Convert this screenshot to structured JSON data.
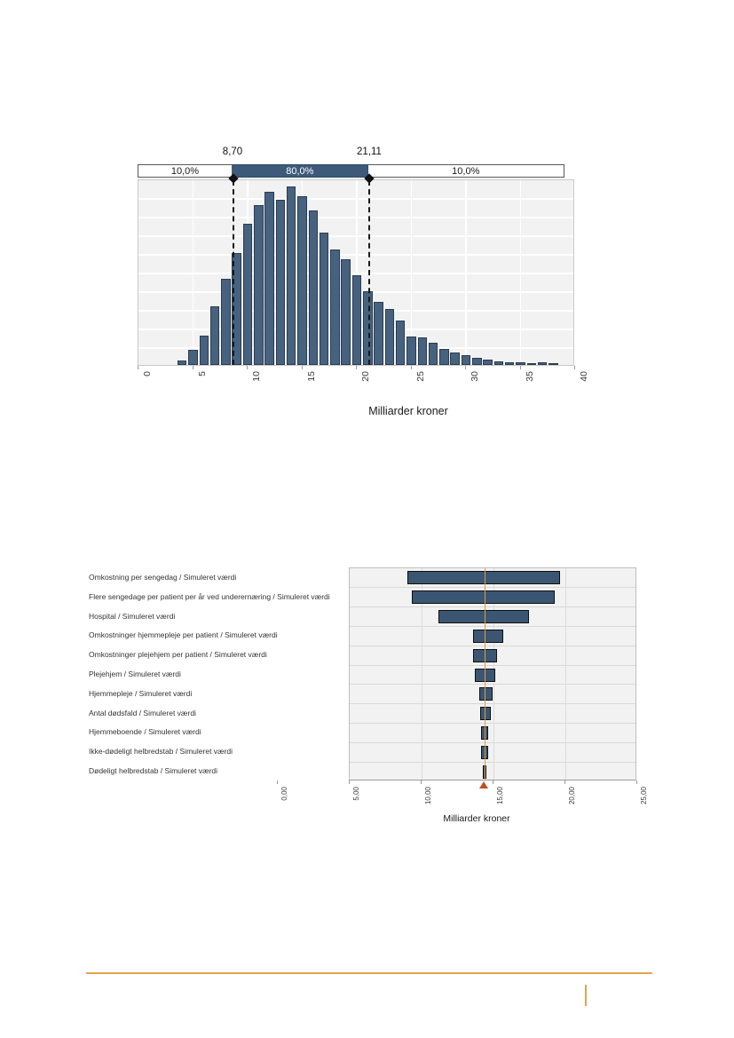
{
  "chart_data": [
    {
      "type": "bar",
      "role": "histogram-distribution",
      "title": "",
      "xlabel": "Milliarder kroner",
      "ylabel": "",
      "xlim": [
        0,
        40
      ],
      "grid": true,
      "legend": "none",
      "x_ticks": [
        "0",
        "5",
        "10",
        "15",
        "20",
        "25",
        "30",
        "35",
        "40"
      ],
      "x_tick_values": [
        0,
        5,
        10,
        15,
        20,
        25,
        30,
        35,
        40
      ],
      "bin_centers": [
        4,
        5,
        6,
        7,
        8,
        9,
        10,
        11,
        12,
        13,
        14,
        15,
        16,
        17,
        18,
        19,
        20,
        21,
        22,
        23,
        24,
        25,
        26,
        27,
        28,
        29,
        30,
        31,
        32,
        33,
        34,
        35,
        36,
        37,
        38
      ],
      "heights_relative": [
        0.025,
        0.08,
        0.16,
        0.32,
        0.47,
        0.61,
        0.77,
        0.87,
        0.94,
        0.9,
        0.97,
        0.92,
        0.84,
        0.72,
        0.63,
        0.575,
        0.49,
        0.4,
        0.345,
        0.305,
        0.24,
        0.155,
        0.15,
        0.12,
        0.085,
        0.07,
        0.055,
        0.04,
        0.027,
        0.02,
        0.016,
        0.013,
        0.012,
        0.014,
        0.01
      ],
      "y_axis_note": "no y-axis labels shown; heights normalized to tallest bar = 1",
      "delimiters": {
        "left_label": "8,70",
        "left_value": 8.7,
        "right_label": "21,11",
        "right_value": 21.11
      },
      "band": {
        "labels": [
          "10,0%",
          "80,0%",
          "10,0%"
        ],
        "span": [
          0,
          39.1
        ]
      }
    },
    {
      "type": "bar",
      "role": "tornado-sensitivity",
      "title": "",
      "xlabel": "Milliarder kroner",
      "ylabel": "",
      "axis_xlim": [
        0,
        25
      ],
      "plot_xlim": [
        5,
        25
      ],
      "grid": true,
      "legend": "none",
      "x_ticks": [
        "0,00",
        "5,00",
        "10,00",
        "15,00",
        "20,00",
        "25,00"
      ],
      "x_tick_values": [
        0,
        5,
        10,
        15,
        20,
        25
      ],
      "baseline_value": 14.4,
      "categories": [
        "Omkostning per sengedag / Simuleret værdi",
        "Flere sengedage per patient per år ved underernæring / Simuleret værdi",
        "Hospital / Simuleret værdi",
        "Omkostninger hjemmepleje per patient / Simuleret værdi",
        "Omkostninger plejehjem per patient / Simuleret værdi",
        "Plejehjem / Simuleret værdi",
        "Hjemmepleje / Simuleret værdi",
        "Antal dødsfald / Simuleret værdi",
        "Hjemmeboende / Simuleret værdi",
        "Ikke-dødeligt helbredstab / Simuleret værdi",
        "Dødeligt helbredstab / Simuleret værdi"
      ],
      "bars": [
        {
          "low": 9.0,
          "high": 19.6
        },
        {
          "low": 9.3,
          "high": 19.25
        },
        {
          "low": 11.2,
          "high": 17.5
        },
        {
          "low": 13.6,
          "high": 15.7
        },
        {
          "low": 13.55,
          "high": 15.25
        },
        {
          "low": 13.7,
          "high": 15.1
        },
        {
          "low": 14.0,
          "high": 14.95
        },
        {
          "low": 14.05,
          "high": 14.8
        },
        {
          "low": 14.15,
          "high": 14.65
        },
        {
          "low": 14.15,
          "high": 14.6
        },
        {
          "low": 14.25,
          "high": 14.5
        }
      ]
    }
  ],
  "colors": {
    "histogram_bar_fill": "#46627f",
    "histogram_bar_border": "#2b3c50",
    "band_middle_fill": "#3d5a7a",
    "tornado_bar_fill": "#3b5672",
    "tornado_bar_border": "#0f0f0f",
    "baseline_line": "#e09a44",
    "baseline_marker": "#bf4d26",
    "plot_background": "#f2f2f2",
    "footer_rule": "#dfa550"
  }
}
